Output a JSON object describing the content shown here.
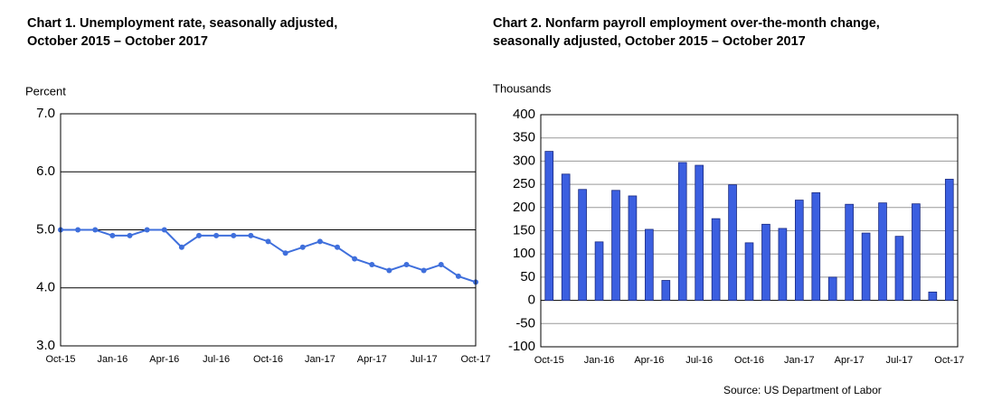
{
  "chart_data": [
    {
      "type": "line",
      "title": [
        "Chart 1. Unemployment rate, seasonally adjusted,",
        "October 2015 – October 2017"
      ],
      "y_label": "Percent",
      "categories": [
        "Oct-15",
        null,
        null,
        "Jan-16",
        null,
        null,
        "Apr-16",
        null,
        null,
        "Jul-16",
        null,
        null,
        "Oct-16",
        null,
        null,
        "Jan-17",
        null,
        null,
        "Apr-17",
        null,
        null,
        "Jul-17",
        null,
        null,
        "Oct-17"
      ],
      "values": [
        5.0,
        5.0,
        5.0,
        4.9,
        4.9,
        5.0,
        5.0,
        4.7,
        4.9,
        4.9,
        4.9,
        4.9,
        4.8,
        4.6,
        4.7,
        4.8,
        4.7,
        4.5,
        4.4,
        4.3,
        4.4,
        4.3,
        4.4,
        4.2,
        4.1
      ],
      "color": "#3f6fdc",
      "ylim": [
        3,
        7
      ],
      "yticks": [
        {
          "value": 3,
          "label": "3.0"
        },
        {
          "value": 4,
          "label": "4.0"
        },
        {
          "value": 5,
          "label": "5.0"
        },
        {
          "value": 6,
          "label": "6.0"
        },
        {
          "value": 7,
          "label": "7.0"
        }
      ],
      "grid": true
    },
    {
      "type": "bar",
      "title": [
        "Chart 2. Nonfarm payroll employment over-the-month change,",
        "seasonally adjusted, October  2015 – October 2017"
      ],
      "y_label": "Thousands",
      "categories": [
        "Oct-15",
        null,
        null,
        "Jan-16",
        null,
        null,
        "Apr-16",
        null,
        null,
        "Jul-16",
        null,
        null,
        "Oct-16",
        null,
        null,
        "Jan-17",
        null,
        null,
        "Apr-17",
        null,
        null,
        "Jul-17",
        null,
        null,
        "Oct-17"
      ],
      "values": [
        321,
        272,
        239,
        126,
        237,
        225,
        153,
        43,
        297,
        291,
        176,
        249,
        124,
        164,
        155,
        216,
        232,
        50,
        207,
        145,
        210,
        138,
        208,
        18,
        261
      ],
      "color": "#3b5fe0",
      "ylim": [
        -100,
        400
      ],
      "yticks": [
        -100,
        -50,
        0,
        50,
        100,
        150,
        200,
        250,
        300,
        350,
        400
      ],
      "grid": true
    }
  ],
  "source": "Source: US Department of Labor"
}
